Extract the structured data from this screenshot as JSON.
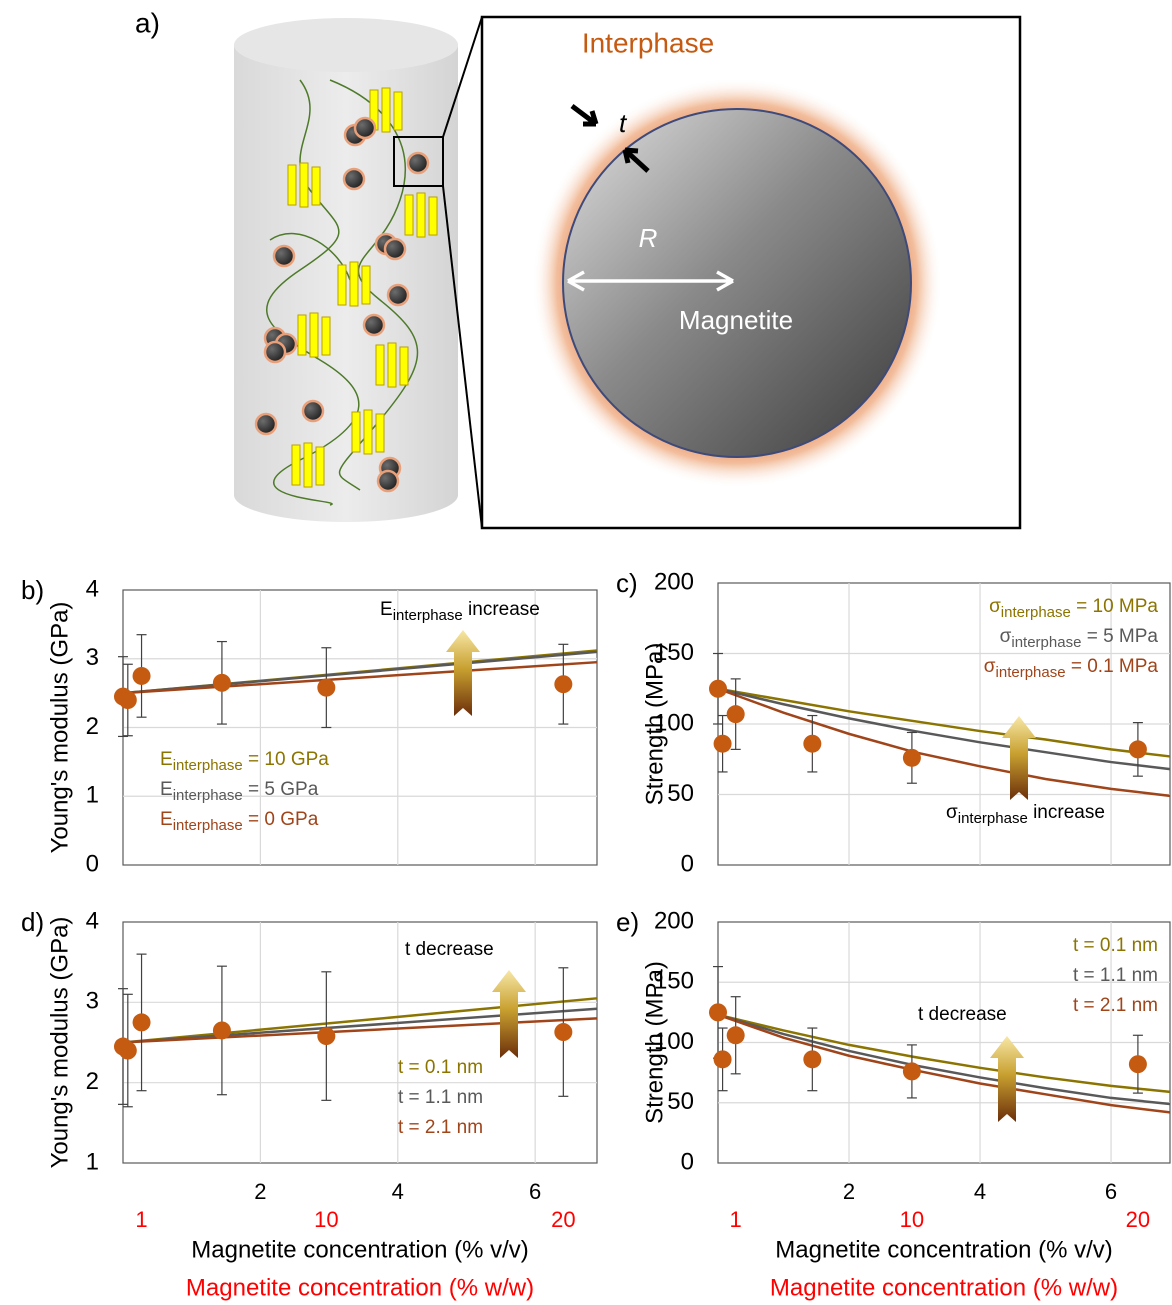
{
  "diagram": {
    "panel_label": "a)",
    "interphase": "Interphase",
    "thickness": "t",
    "radius": "R",
    "core": "Magnetite"
  },
  "chart_data": [
    {
      "type": "line",
      "panel_label": "b)",
      "ylabel": "Young's modulus (GPa)",
      "xlim": [
        0,
        6.9
      ],
      "xticks": [
        2,
        4,
        6
      ],
      "xtick_labels": false,
      "ylim": [
        0,
        4
      ],
      "yticks": [
        0,
        1,
        2,
        3,
        4
      ],
      "grid": true,
      "legend": "lower left",
      "annotation": [
        "E",
        "interphase",
        " increase"
      ],
      "points": {
        "color": "#c55a11",
        "x": [
          0.0,
          0.07,
          0.27,
          1.44,
          2.96,
          6.41
        ],
        "values": [
          2.45,
          2.4,
          2.75,
          2.65,
          2.58,
          2.63
        ],
        "errors": [
          0.58,
          0.52,
          0.6,
          0.6,
          0.58,
          0.58
        ]
      },
      "series": [
        {
          "name": [
            "E",
            "interphase",
            " = 10 GPa"
          ],
          "color": "#8c7400",
          "x": [
            0,
            6.9
          ],
          "values": [
            2.5,
            3.12
          ]
        },
        {
          "name": [
            "E",
            "interphase",
            " = 5 GPa"
          ],
          "color": "#595959",
          "x": [
            0,
            6.9
          ],
          "values": [
            2.5,
            3.1
          ]
        },
        {
          "name": [
            "E",
            "interphase",
            " = 0 GPa"
          ],
          "color": "#a0441a",
          "x": [
            0,
            6.9
          ],
          "values": [
            2.5,
            2.95
          ]
        }
      ]
    },
    {
      "type": "line",
      "panel_label": "c)",
      "ylabel": "Strength (MPa)",
      "xlim": [
        0,
        6.9
      ],
      "xticks": [
        2,
        4,
        6
      ],
      "xtick_labels": false,
      "ylim": [
        0,
        200
      ],
      "yticks": [
        0,
        50,
        100,
        150,
        200
      ],
      "grid": true,
      "legend": "upper right",
      "annotation": [
        "σ",
        "interphase",
        " increase"
      ],
      "points": {
        "color": "#c55a11",
        "x": [
          0.0,
          0.07,
          0.27,
          1.44,
          2.96,
          6.41
        ],
        "values": [
          125,
          86,
          107,
          86,
          76,
          82
        ],
        "errors": [
          25,
          20,
          25,
          20,
          18,
          19
        ]
      },
      "series": [
        {
          "name": [
            "σ",
            "interphase",
            " = 10 MPa"
          ],
          "color": "#8c7400",
          "x": [
            0,
            1,
            2,
            3,
            4,
            5,
            6,
            6.9
          ],
          "values": [
            125,
            117,
            109,
            102,
            95,
            89,
            82,
            77
          ]
        },
        {
          "name": [
            "σ",
            "interphase",
            " = 5 MPa"
          ],
          "color": "#595959",
          "x": [
            0,
            1,
            2,
            3,
            4,
            5,
            6,
            6.9
          ],
          "values": [
            125,
            114,
            104,
            95,
            87,
            80,
            73,
            68
          ]
        },
        {
          "name": [
            "σ",
            "interphase",
            " = 0.1 MPa"
          ],
          "color": "#a0441a",
          "x": [
            0,
            1,
            2,
            3,
            4,
            5,
            6,
            6.9
          ],
          "values": [
            125,
            108,
            93,
            80,
            70,
            61,
            54,
            49
          ]
        }
      ]
    },
    {
      "type": "line",
      "panel_label": "d)",
      "ylabel": "Young's modulus (GPa)",
      "xlabel": "Magnetite concentration (% v/v)",
      "x2label": "Magnetite concentration (% w/w)",
      "x2_color": "#ff0000",
      "xlim": [
        0,
        6.9
      ],
      "xticks": [
        2,
        4,
        6
      ],
      "x2ticks": [
        {
          "value": 0.27,
          "label": "1"
        },
        {
          "value": 2.96,
          "label": "10"
        },
        {
          "value": 6.41,
          "label": "20"
        }
      ],
      "ylim": [
        1,
        4
      ],
      "yticks": [
        1,
        2,
        3,
        4
      ],
      "grid": true,
      "legend": "lower center",
      "annotation": "t decrease",
      "points": {
        "color": "#c55a11",
        "x": [
          0.0,
          0.07,
          0.27,
          1.44,
          2.96,
          6.41
        ],
        "values": [
          2.45,
          2.4,
          2.75,
          2.65,
          2.58,
          2.63
        ],
        "errors": [
          0.72,
          0.7,
          0.85,
          0.8,
          0.8,
          0.8
        ]
      },
      "series": [
        {
          "name": "t = 0.1 nm",
          "color": "#8c7400",
          "x": [
            0,
            6.9
          ],
          "values": [
            2.5,
            3.05
          ]
        },
        {
          "name": "t = 1.1 nm",
          "color": "#595959",
          "x": [
            0,
            6.9
          ],
          "values": [
            2.5,
            2.92
          ]
        },
        {
          "name": "t = 2.1 nm",
          "color": "#a0441a",
          "x": [
            0,
            6.9
          ],
          "values": [
            2.5,
            2.8
          ]
        }
      ]
    },
    {
      "type": "line",
      "panel_label": "e)",
      "ylabel": "Strength (MPa)",
      "xlabel": "Magnetite concentration (% v/v)",
      "x2label": "Magnetite concentration (% w/w)",
      "x2_color": "#ff0000",
      "xlim": [
        0,
        6.9
      ],
      "xticks": [
        2,
        4,
        6
      ],
      "x2ticks": [
        {
          "value": 0.27,
          "label": "1"
        },
        {
          "value": 2.96,
          "label": "10"
        },
        {
          "value": 6.41,
          "label": "20"
        }
      ],
      "ylim": [
        0,
        200
      ],
      "yticks": [
        0,
        50,
        100,
        150,
        200
      ],
      "grid": true,
      "legend": "upper right",
      "annotation": "t decrease",
      "points": {
        "color": "#c55a11",
        "x": [
          0.0,
          0.07,
          0.27,
          1.44,
          2.96,
          6.41
        ],
        "values": [
          125,
          86,
          106,
          86,
          76,
          82
        ],
        "errors": [
          38,
          26,
          32,
          26,
          22,
          24
        ]
      },
      "series": [
        {
          "name": "t = 0.1 nm",
          "color": "#8c7400",
          "x": [
            0,
            1,
            2,
            3,
            4,
            5,
            6,
            6.9
          ],
          "values": [
            123,
            110,
            98,
            88,
            79,
            71,
            64,
            59
          ]
        },
        {
          "name": "t = 1.1 nm",
          "color": "#595959",
          "x": [
            0,
            1,
            2,
            3,
            4,
            5,
            6,
            6.9
          ],
          "values": [
            123,
            107,
            93,
            81,
            71,
            62,
            54,
            49
          ]
        },
        {
          "name": "t = 2.1 nm",
          "color": "#a0441a",
          "x": [
            0,
            1,
            2,
            3,
            4,
            5,
            6,
            6.9
          ],
          "values": [
            123,
            104,
            89,
            77,
            66,
            57,
            48,
            42
          ]
        }
      ]
    }
  ]
}
